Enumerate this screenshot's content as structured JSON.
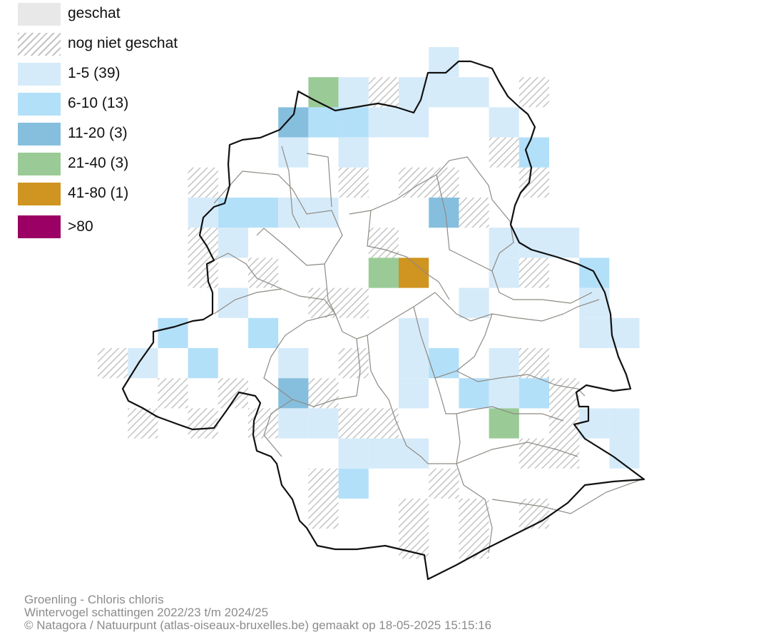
{
  "legend": {
    "items": [
      {
        "label": "geschat",
        "color": "#e8e8e8",
        "hatch": false
      },
      {
        "label": "nog niet geschat",
        "color": "#c4c4c4",
        "hatch": true
      },
      {
        "label": "1-5 (39)",
        "color": "#d6ebf9",
        "hatch": false
      },
      {
        "label": "6-10 (13)",
        "color": "#b3e0f9",
        "hatch": false
      },
      {
        "label": "11-20 (3)",
        "color": "#86bfde",
        "hatch": false
      },
      {
        "label": "21-40 (3)",
        "color": "#9acb96",
        "hatch": false
      },
      {
        "label": "41-80 (1)",
        "color": "#d09420",
        "hatch": false
      },
      {
        "label": ">80",
        "color": "#9b0064",
        "hatch": false
      }
    ]
  },
  "footer": {
    "species": "Groenling - Chloris chloris",
    "period": "Wintervogel schattingen 2022/23 t/m 2024/25",
    "credit": "© Natagora / Natuurpunt (atlas-oiseaux-bruxelles.be) gemaakt op 18-05-2025 15:15:16"
  },
  "map": {
    "colors": {
      "c1": "#d6ebf9",
      "c2": "#b3e0f9",
      "c3": "#86bfde",
      "c4": "#9acb96",
      "c5": "#d09420",
      "hatch": "#c4c4c4",
      "boundary": "#111111",
      "municipal": "#8f8a84"
    }
  }
}
